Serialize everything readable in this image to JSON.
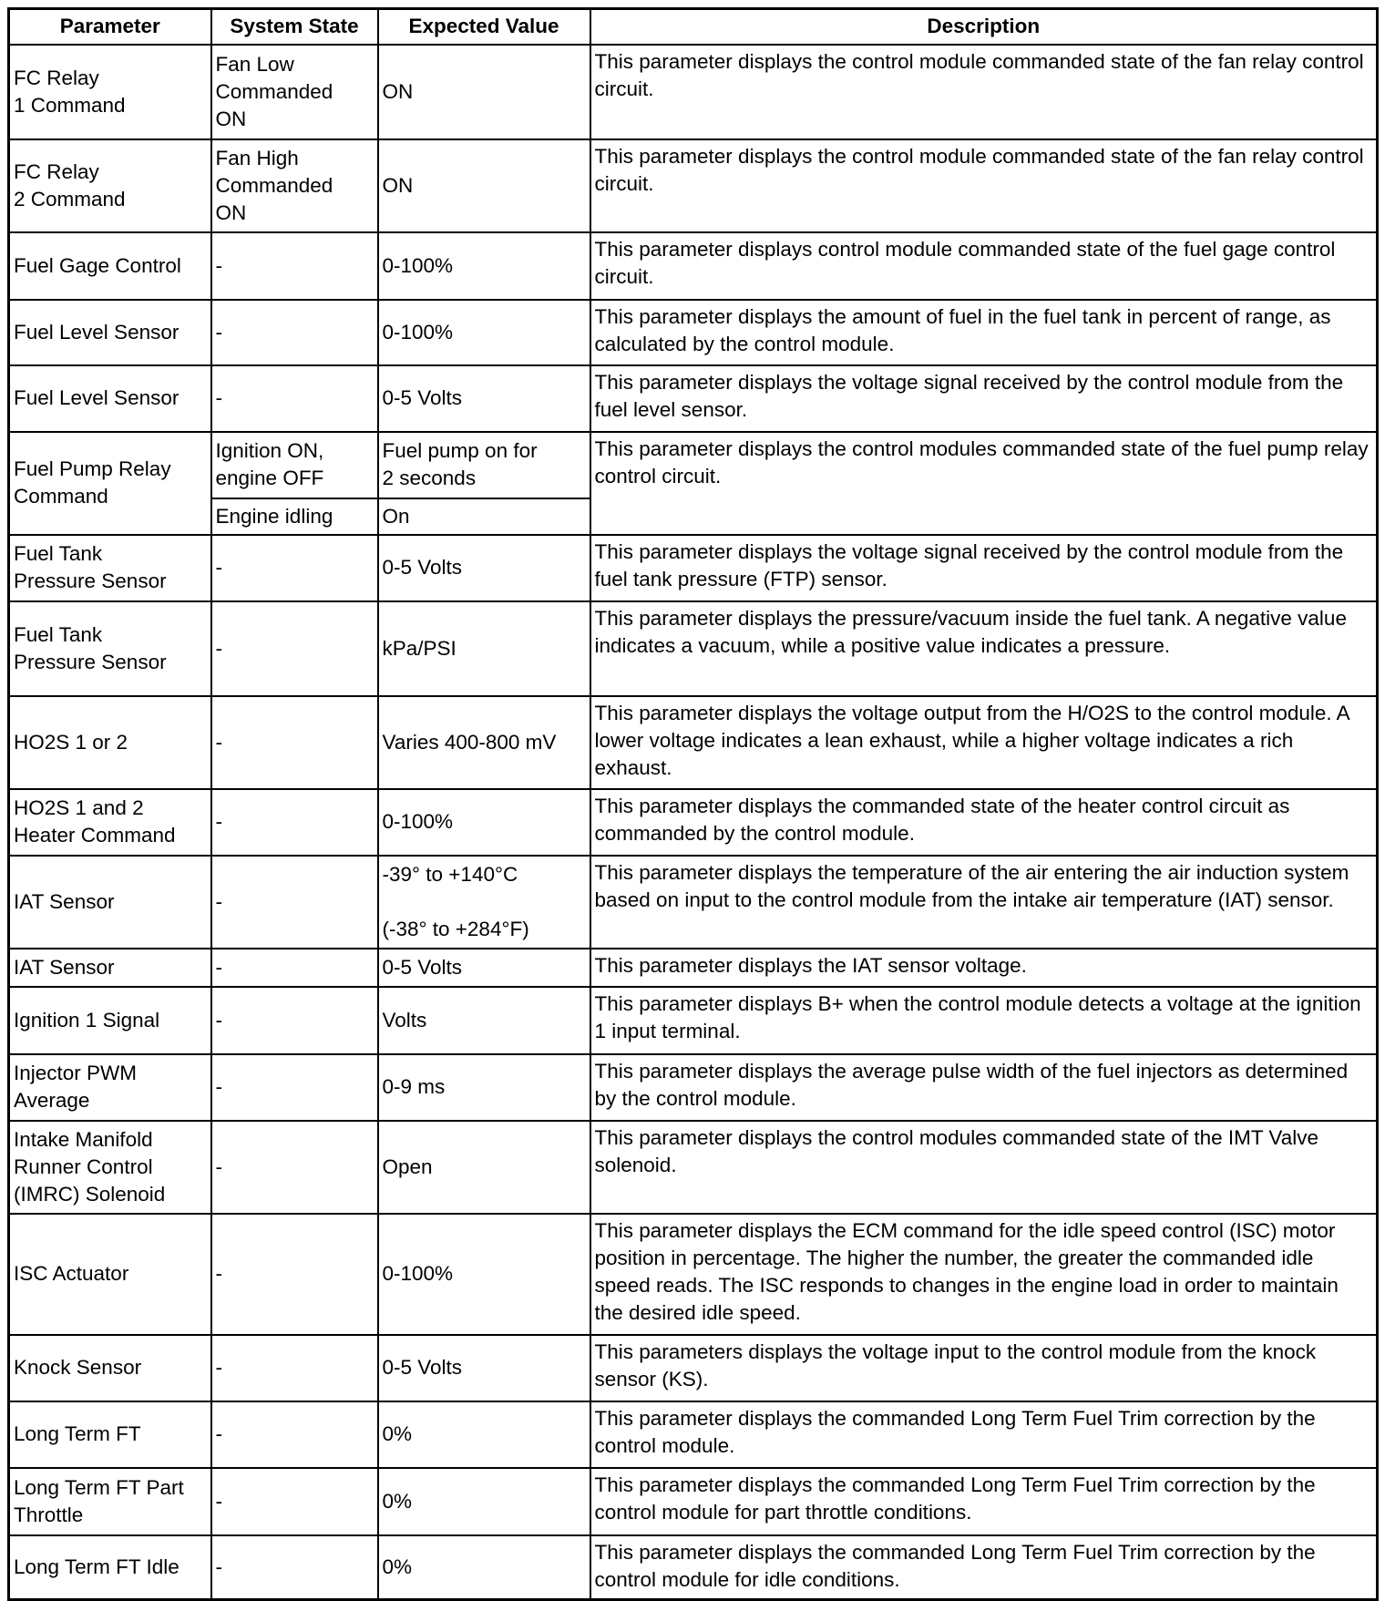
{
  "headers": [
    "Parameter",
    "System State",
    "Expected Value",
    "Description"
  ],
  "rows": [
    {
      "parameter": "FC Relay\n1 Command",
      "state": "Fan Low\nCommanded\nON",
      "expected": "ON",
      "description": "This parameter displays the control module commanded state of the fan relay control circuit."
    },
    {
      "parameter": "FC Relay\n2 Command",
      "state": "Fan High\nCommanded\nON",
      "expected": "ON",
      "description": "This parameter displays the control module commanded state of the fan relay control circuit."
    },
    {
      "parameter": "Fuel Gage Control",
      "state": "-",
      "expected": "0-100%",
      "description": "This parameter displays control module commanded state of the fuel gage control circuit."
    },
    {
      "parameter": "Fuel Level Sensor",
      "state": "-",
      "expected": "0-100%",
      "description": "This parameter displays the amount of fuel in the fuel tank in percent of range, as calculated by the control module."
    },
    {
      "parameter": "Fuel Level Sensor",
      "state": "-",
      "expected": "0-5 Volts",
      "description": "This parameter displays the voltage signal received by the control module from the fuel level sensor."
    },
    {
      "parameter": "Fuel Pump Relay Command",
      "state": "Ignition ON,\nengine OFF",
      "expected": "Fuel pump on for\n2 seconds",
      "description": "This parameter displays the control modules commanded state of the fuel pump relay control circuit.",
      "sub": {
        "state": "Engine idling",
        "expected": "On"
      }
    },
    {
      "parameter": "Fuel Tank\nPressure Sensor",
      "state": "-",
      "expected": "0-5 Volts",
      "description": "This parameter displays the voltage signal received by the control module from the fuel tank pressure (FTP) sensor."
    },
    {
      "parameter": "Fuel Tank\nPressure Sensor",
      "state": "-",
      "expected": "kPa/PSI",
      "description": "This parameter displays the pressure/vacuum inside the fuel tank. A negative value indicates a vacuum, while a positive value indicates a pressure."
    },
    {
      "parameter": "HO2S 1 or 2",
      "state": "-",
      "expected": "Varies 400-800 mV",
      "description": "This parameter displays the voltage output from the H/O2S to the control module. A lower voltage indicates a lean exhaust, while a higher voltage indicates a rich exhaust."
    },
    {
      "parameter": "HO2S 1 and 2\nHeater Command",
      "state": "-",
      "expected": "0-100%",
      "description": "This parameter displays the commanded state of the heater control circuit as commanded by the control module."
    },
    {
      "parameter": "IAT Sensor",
      "state": "-",
      "expected": "-39° to +140°C\n\n(-38° to +284°F)",
      "description": "This parameter displays the temperature of the air entering the air induction system based on input to the control module from the intake air temperature (IAT) sensor."
    },
    {
      "parameter": "IAT Sensor",
      "state": "-",
      "expected": "0-5 Volts",
      "description": "This parameter displays the IAT sensor voltage."
    },
    {
      "parameter": "Ignition 1 Signal",
      "state": "-",
      "expected": "Volts",
      "description": "This parameter displays B+ when the control module detects a voltage at the ignition 1 input terminal."
    },
    {
      "parameter": "Injector PWM\nAverage",
      "state": "-",
      "expected": "0-9 ms",
      "description": "This parameter displays the average pulse width of the fuel injectors as determined by the control module."
    },
    {
      "parameter": "Intake Manifold\nRunner Control\n(IMRC) Solenoid",
      "state": "-",
      "expected": "Open",
      "description": "This parameter displays the control modules commanded state of the IMT Valve solenoid."
    },
    {
      "parameter": "ISC Actuator",
      "state": "-",
      "expected": "0-100%",
      "description": "This parameter displays the ECM command for the idle speed control (ISC) motor position in percentage. The higher the number, the greater the commanded idle speed reads. The ISC responds to changes in the engine load in order to maintain the desired idle speed."
    },
    {
      "parameter": "Knock Sensor",
      "state": "-",
      "expected": "0-5 Volts",
      "description": "This parameters displays the voltage input to the control module from the knock sensor (KS)."
    },
    {
      "parameter": "Long Term FT",
      "state": "-",
      "expected": "0%",
      "description": "This parameter displays the commanded Long Term Fuel Trim correction by the control module."
    },
    {
      "parameter": "Long Term FT Part\nThrottle",
      "state": "-",
      "expected": "0%",
      "description": "This parameter displays the commanded Long Term Fuel Trim correction by the control module for part throttle conditions."
    },
    {
      "parameter": "Long Term FT Idle",
      "state": "-",
      "expected": "0%",
      "description": "This parameter displays the commanded Long Term Fuel Trim correction by the control module for idle conditions."
    }
  ]
}
